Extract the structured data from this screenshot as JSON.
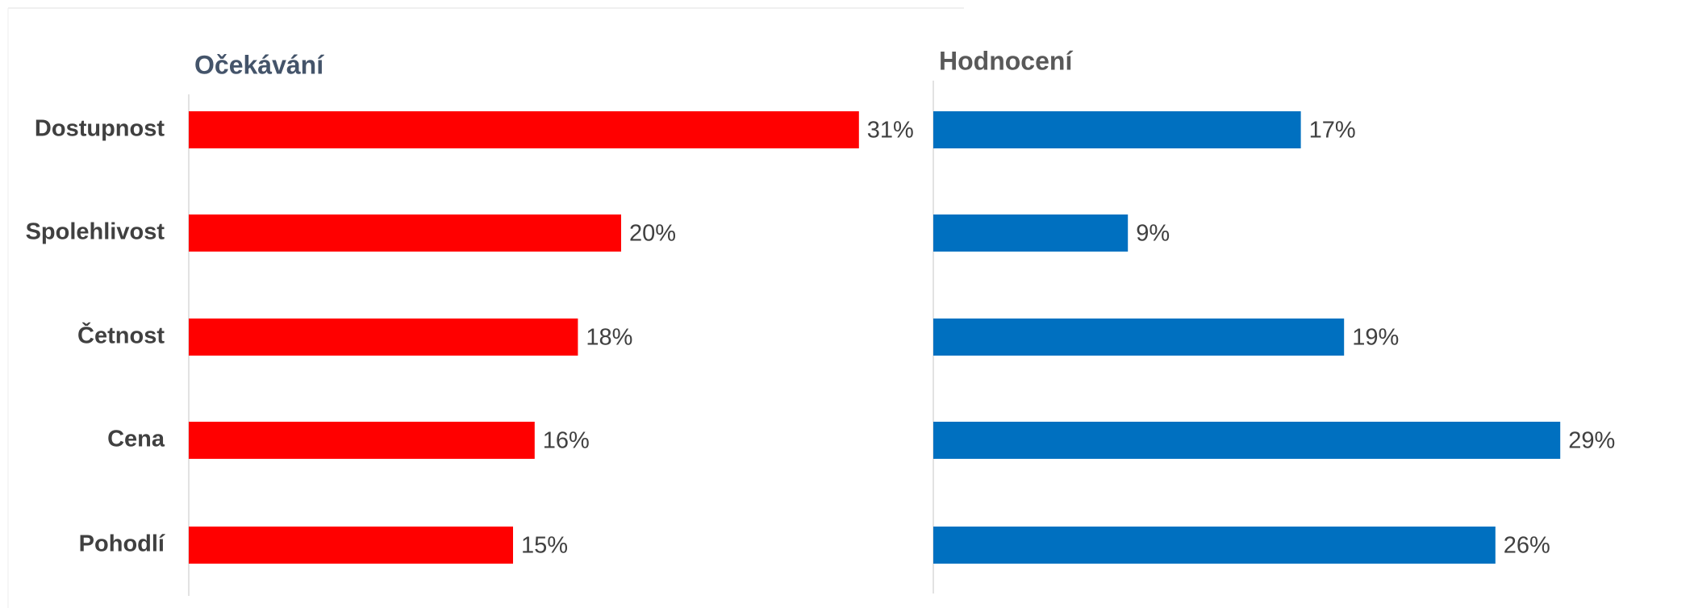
{
  "chart_data": [
    {
      "type": "barh",
      "title": "Očekávání",
      "categories": [
        "Dostupnost",
        "Spolehlivost",
        "Četnost",
        "Cena",
        "Pohodlí"
      ],
      "values": [
        31,
        20,
        18,
        16,
        15
      ],
      "value_labels": [
        "31%",
        "20%",
        "18%",
        "16%",
        "15%"
      ],
      "color": "#ff0000",
      "xlim": [
        0,
        35
      ]
    },
    {
      "type": "barh",
      "title": "Hodnocení",
      "values": [
        17,
        9,
        19,
        29,
        26
      ],
      "value_labels": [
        "17%",
        "9%",
        "19%",
        "29%",
        "26%"
      ],
      "color": "#0070c0",
      "xlim": [
        0,
        35
      ]
    }
  ]
}
